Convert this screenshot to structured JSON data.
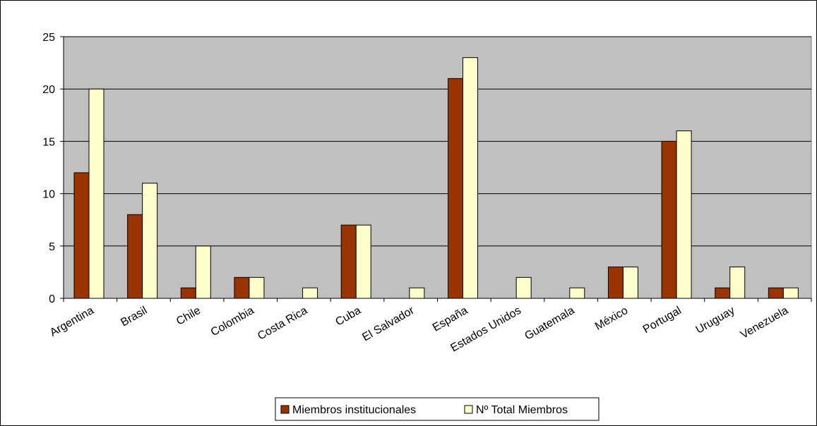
{
  "chart_data": {
    "type": "bar",
    "title": "",
    "xlabel": "",
    "ylabel": "",
    "categories": [
      "Argentina",
      "Brasil",
      "Chile",
      "Colombia",
      "Costa Rica",
      "Cuba",
      "El Salvador",
      "España",
      "Estados Unidos",
      "Guatemala",
      "México",
      "Portugal",
      "Uruguay",
      "Venezuela"
    ],
    "series": [
      {
        "name": "Miembros institucionales",
        "values": [
          12,
          8,
          1,
          2,
          0,
          7,
          0,
          21,
          0,
          0,
          3,
          15,
          1,
          1
        ],
        "color": "#993300"
      },
      {
        "name": "Nº Total Miembros",
        "values": [
          20,
          11,
          5,
          2,
          1,
          7,
          1,
          23,
          2,
          1,
          3,
          16,
          3,
          1
        ],
        "color": "#FFFFCC"
      }
    ],
    "ylim": [
      0,
      25
    ],
    "yticks": [
      0,
      5,
      10,
      15,
      20,
      25
    ],
    "grid": true,
    "plot_background": "#C0C0C0",
    "legend_position": "bottom-center"
  }
}
